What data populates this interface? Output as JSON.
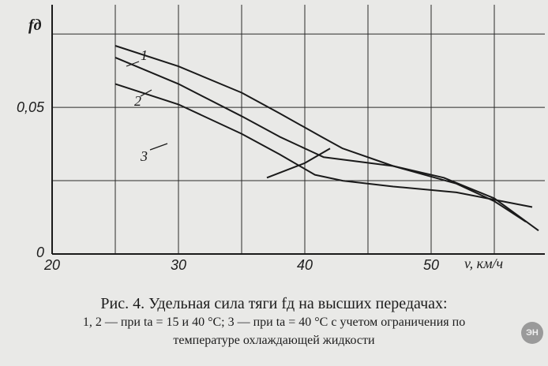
{
  "chart_data": {
    "type": "line",
    "title": "",
    "xlabel": "v, км/ч",
    "ylabel": "fд",
    "xlim": [
      20,
      59
    ],
    "ylim": [
      0,
      0.085
    ],
    "x_ticks": [
      "20",
      "30",
      "40",
      "50"
    ],
    "y_ticks": [
      "0",
      "0,05"
    ],
    "grid": true,
    "series": [
      {
        "name": "1",
        "x": [
          25,
          30,
          35,
          38,
          41.3,
          43,
          47,
          52,
          55,
          57.5
        ],
        "y": [
          0.071,
          0.064,
          0.055,
          0.048,
          0.04,
          0.036,
          0.03,
          0.024,
          0.018,
          0.011
        ]
      },
      {
        "name": "2",
        "x": [
          25,
          30,
          35,
          38,
          40.5,
          41.5,
          47,
          51,
          55,
          58.5
        ],
        "y": [
          0.067,
          0.058,
          0.047,
          0.04,
          0.035,
          0.033,
          0.03,
          0.026,
          0.019,
          0.008
        ]
      },
      {
        "name": "3",
        "x": [
          25,
          30,
          35,
          38,
          40.8,
          43,
          47,
          52,
          58
        ],
        "y": [
          0.058,
          0.051,
          0.041,
          0.034,
          0.027,
          0.025,
          0.023,
          0.021,
          0.016
        ]
      },
      {
        "name": "",
        "x": [
          37,
          40,
          42
        ],
        "y": [
          0.026,
          0.031,
          0.036
        ]
      }
    ],
    "annotations": [
      "1",
      "2",
      "3"
    ]
  },
  "caption": {
    "line1": "Рис. 4. Удельная сила тяги fд на высших передачах:",
    "line2": "1, 2 — при tа = 15 и 40 °C; 3 — при tа = 40 °C с учетом ограничения по",
    "line3": "температуре охлаждающей жидкости"
  },
  "watermark": "ЭН"
}
